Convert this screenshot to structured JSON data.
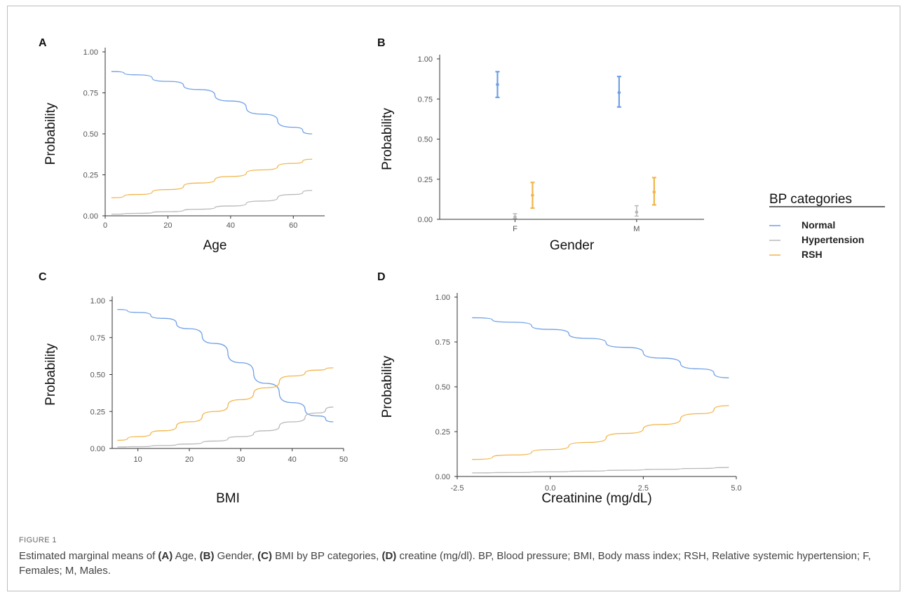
{
  "figure_label": "FIGURE 1",
  "caption": {
    "parts": [
      {
        "text": "Estimated marginal means of ",
        "bold": false
      },
      {
        "text": "(A)",
        "bold": true
      },
      {
        "text": " Age, ",
        "bold": false
      },
      {
        "text": "(B)",
        "bold": true
      },
      {
        "text": " Gender, ",
        "bold": false
      },
      {
        "text": "(C)",
        "bold": true
      },
      {
        "text": " BMI by BP categories, ",
        "bold": false
      },
      {
        "text": "(D)",
        "bold": true
      },
      {
        "text": " creatine (mg/dl). BP, Blood pressure; BMI, Body mass index; RSH, Relative systemic hypertension; F, Females; M, Males.",
        "bold": false
      }
    ]
  },
  "colors": {
    "Normal": "#6fa0e6",
    "Hypertension": "#b8b8b8",
    "RSH": "#f2b54a"
  },
  "legend": {
    "title": "BP categories",
    "entries": [
      "Normal",
      "Hypertension",
      "RSH"
    ]
  },
  "chart_data": [
    {
      "panel": "A",
      "type": "line",
      "xlabel": "Age",
      "ylabel": "Probability",
      "xlim": [
        0,
        70
      ],
      "ylim": [
        0,
        1
      ],
      "xticks": [
        0,
        20,
        40,
        60
      ],
      "yticks": [
        "0.00",
        "0.25",
        "0.50",
        "0.75",
        "1.00"
      ],
      "series": [
        {
          "name": "Normal",
          "x": [
            2,
            10,
            20,
            30,
            40,
            50,
            60,
            66
          ],
          "y": [
            0.88,
            0.86,
            0.82,
            0.77,
            0.7,
            0.62,
            0.54,
            0.5
          ]
        },
        {
          "name": "Hypertension",
          "x": [
            2,
            10,
            20,
            30,
            40,
            50,
            60,
            66
          ],
          "y": [
            0.01,
            0.015,
            0.025,
            0.04,
            0.06,
            0.09,
            0.13,
            0.155
          ]
        },
        {
          "name": "RSH",
          "x": [
            2,
            10,
            20,
            30,
            40,
            50,
            60,
            66
          ],
          "y": [
            0.11,
            0.13,
            0.16,
            0.2,
            0.24,
            0.28,
            0.32,
            0.345
          ]
        }
      ]
    },
    {
      "panel": "B",
      "type": "scatter",
      "xlabel": "Gender",
      "ylabel": "Probability",
      "categories": [
        "F",
        "M"
      ],
      "ylim": [
        0,
        1
      ],
      "yticks": [
        "0.00",
        "0.25",
        "0.50",
        "0.75",
        "1.00"
      ],
      "series": [
        {
          "name": "Normal",
          "values": [
            0.84,
            0.79
          ],
          "lower": [
            0.76,
            0.7
          ],
          "upper": [
            0.92,
            0.89
          ]
        },
        {
          "name": "Hypertension",
          "values": [
            0.015,
            0.045
          ],
          "lower": [
            0.005,
            0.02
          ],
          "upper": [
            0.035,
            0.085
          ]
        },
        {
          "name": "RSH",
          "values": [
            0.15,
            0.17
          ],
          "lower": [
            0.07,
            0.09
          ],
          "upper": [
            0.23,
            0.26
          ]
        }
      ]
    },
    {
      "panel": "C",
      "type": "line",
      "xlabel": "BMI",
      "ylabel": "Probability",
      "xlim": [
        5,
        50
      ],
      "ylim": [
        0,
        1
      ],
      "xticks": [
        10,
        20,
        30,
        40,
        50
      ],
      "yticks": [
        "0.00",
        "0.25",
        "0.50",
        "0.75",
        "1.00"
      ],
      "series": [
        {
          "name": "Normal",
          "x": [
            6,
            10,
            15,
            20,
            25,
            30,
            35,
            40,
            45,
            48
          ],
          "y": [
            0.94,
            0.92,
            0.88,
            0.81,
            0.71,
            0.58,
            0.44,
            0.31,
            0.22,
            0.18
          ]
        },
        {
          "name": "Hypertension",
          "x": [
            6,
            10,
            15,
            20,
            25,
            30,
            35,
            40,
            45,
            48
          ],
          "y": [
            0.01,
            0.012,
            0.02,
            0.03,
            0.05,
            0.08,
            0.12,
            0.18,
            0.24,
            0.28
          ]
        },
        {
          "name": "RSH",
          "x": [
            6,
            10,
            15,
            20,
            25,
            30,
            35,
            40,
            45,
            48
          ],
          "y": [
            0.055,
            0.08,
            0.12,
            0.18,
            0.25,
            0.33,
            0.41,
            0.49,
            0.53,
            0.545
          ]
        }
      ]
    },
    {
      "panel": "D",
      "type": "line",
      "xlabel": "Creatinine (mg/dL)",
      "ylabel": "Probability",
      "xlim": [
        -2.5,
        5.0
      ],
      "ylim": [
        0,
        1
      ],
      "xticks": [
        "-2.5",
        "0.0",
        "2.5",
        "5.0"
      ],
      "yticks": [
        "0.00",
        "0.25",
        "0.50",
        "0.75",
        "1.00"
      ],
      "series": [
        {
          "name": "Normal",
          "x": [
            -2.1,
            -1,
            0,
            1,
            2,
            3,
            4,
            4.8
          ],
          "y": [
            0.885,
            0.86,
            0.82,
            0.77,
            0.72,
            0.66,
            0.6,
            0.55
          ]
        },
        {
          "name": "Hypertension",
          "x": [
            -2.1,
            -1,
            0,
            1,
            2,
            3,
            4,
            4.8
          ],
          "y": [
            0.02,
            0.022,
            0.026,
            0.03,
            0.035,
            0.04,
            0.045,
            0.05
          ]
        },
        {
          "name": "RSH",
          "x": [
            -2.1,
            -1,
            0,
            1,
            2,
            3,
            4,
            4.8
          ],
          "y": [
            0.095,
            0.12,
            0.15,
            0.19,
            0.24,
            0.29,
            0.35,
            0.395
          ]
        }
      ]
    }
  ]
}
